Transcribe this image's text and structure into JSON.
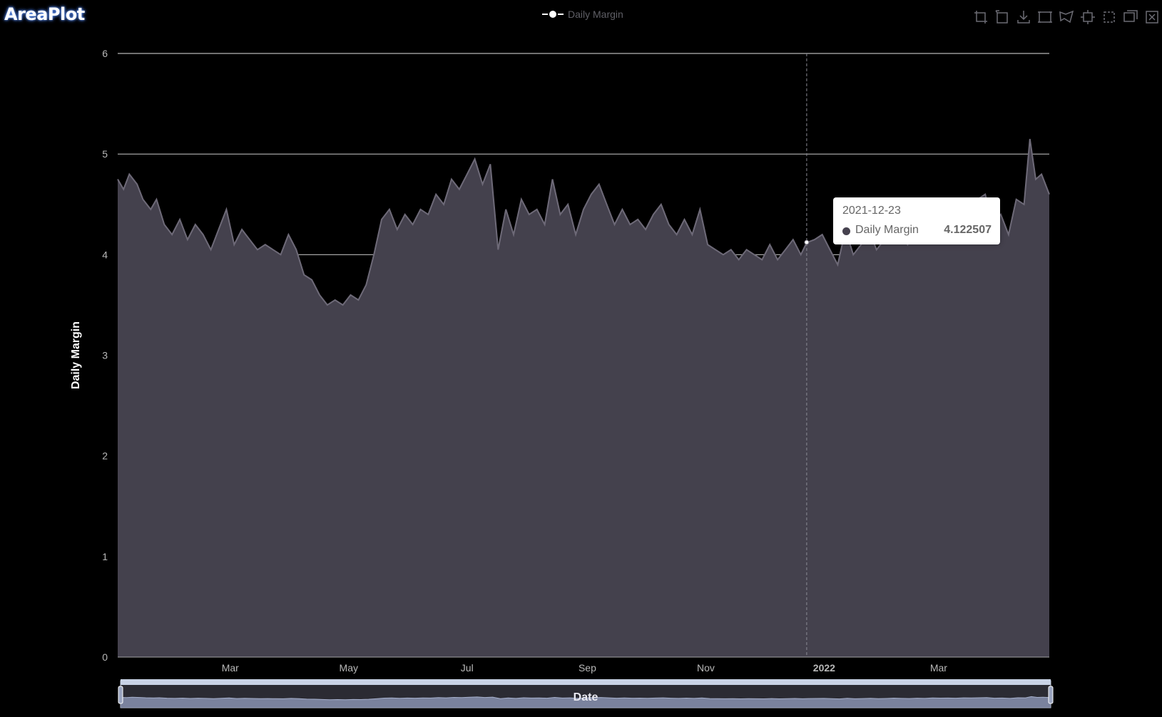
{
  "app": {
    "title": "AreaPlot"
  },
  "legend": {
    "label": "Daily Margin"
  },
  "toolbox": {
    "icons": [
      "zoom-icon",
      "zoom-reset-icon",
      "save-image-icon",
      "rect-select-icon",
      "polygon-select-icon",
      "keep-selection-icon",
      "clear-selection-icon",
      "data-view-icon",
      "restore-icon"
    ]
  },
  "tooltip": {
    "date": "2021-12-23",
    "series": "Daily Margin",
    "value": "4.122507"
  },
  "colors": {
    "background": "#000000",
    "area_fill": "#44414d",
    "line": "#6e6a78",
    "grid": "#d6d6d6",
    "axis_text": "#b8b8b8",
    "tooltip_bg": "#ffffff"
  },
  "chart_data": {
    "type": "area",
    "title": "",
    "xlabel": "Date",
    "ylabel": "Daily Margin",
    "ylim": [
      0,
      6
    ],
    "xlim": [
      "2021-01-02",
      "2022-04-27"
    ],
    "yticks": [
      "0",
      "1",
      "2",
      "3",
      "4",
      "5",
      "6"
    ],
    "xticks": [
      {
        "date": "2021-03-01",
        "label": "Mar",
        "bold": false
      },
      {
        "date": "2021-05-01",
        "label": "May",
        "bold": false
      },
      {
        "date": "2021-07-01",
        "label": "Jul",
        "bold": false
      },
      {
        "date": "2021-09-01",
        "label": "Sep",
        "bold": false
      },
      {
        "date": "2021-11-01",
        "label": "Nov",
        "bold": false
      },
      {
        "date": "2022-01-01",
        "label": "2022",
        "bold": true
      },
      {
        "date": "2022-03-01",
        "label": "Mar",
        "bold": false
      }
    ],
    "grid": true,
    "legend_position": "top-center",
    "highlight": {
      "x": "2021-12-23",
      "y": 4.122507
    },
    "series": [
      {
        "name": "Daily Margin",
        "x": [
          "2021-01-02",
          "2021-01-05",
          "2021-01-08",
          "2021-01-12",
          "2021-01-15",
          "2021-01-19",
          "2021-01-22",
          "2021-01-26",
          "2021-01-30",
          "2021-02-03",
          "2021-02-07",
          "2021-02-11",
          "2021-02-15",
          "2021-02-19",
          "2021-02-23",
          "2021-02-27",
          "2021-03-03",
          "2021-03-07",
          "2021-03-11",
          "2021-03-15",
          "2021-03-19",
          "2021-03-23",
          "2021-03-27",
          "2021-03-31",
          "2021-04-04",
          "2021-04-08",
          "2021-04-12",
          "2021-04-16",
          "2021-04-20",
          "2021-04-24",
          "2021-04-28",
          "2021-05-02",
          "2021-05-06",
          "2021-05-10",
          "2021-05-14",
          "2021-05-18",
          "2021-05-22",
          "2021-05-26",
          "2021-05-30",
          "2021-06-03",
          "2021-06-07",
          "2021-06-11",
          "2021-06-15",
          "2021-06-19",
          "2021-06-23",
          "2021-06-27",
          "2021-07-01",
          "2021-07-05",
          "2021-07-09",
          "2021-07-13",
          "2021-07-17",
          "2021-07-21",
          "2021-07-25",
          "2021-07-29",
          "2021-08-02",
          "2021-08-06",
          "2021-08-10",
          "2021-08-14",
          "2021-08-18",
          "2021-08-22",
          "2021-08-26",
          "2021-08-30",
          "2021-09-03",
          "2021-09-07",
          "2021-09-11",
          "2021-09-15",
          "2021-09-19",
          "2021-09-23",
          "2021-09-27",
          "2021-10-01",
          "2021-10-05",
          "2021-10-09",
          "2021-10-13",
          "2021-10-17",
          "2021-10-21",
          "2021-10-25",
          "2021-10-29",
          "2021-11-02",
          "2021-11-06",
          "2021-11-10",
          "2021-11-14",
          "2021-11-18",
          "2021-11-22",
          "2021-11-26",
          "2021-11-30",
          "2021-12-04",
          "2021-12-08",
          "2021-12-12",
          "2021-12-16",
          "2021-12-20",
          "2021-12-23",
          "2021-12-27",
          "2021-12-31",
          "2022-01-04",
          "2022-01-08",
          "2022-01-12",
          "2022-01-16",
          "2022-01-20",
          "2022-01-24",
          "2022-01-28",
          "2022-02-01",
          "2022-02-05",
          "2022-02-09",
          "2022-02-13",
          "2022-02-17",
          "2022-02-21",
          "2022-02-25",
          "2022-03-01",
          "2022-03-05",
          "2022-03-09",
          "2022-03-13",
          "2022-03-17",
          "2022-03-21",
          "2022-03-25",
          "2022-03-29",
          "2022-04-02",
          "2022-04-06",
          "2022-04-10",
          "2022-04-14",
          "2022-04-17",
          "2022-04-20",
          "2022-04-23",
          "2022-04-27"
        ],
        "values": [
          4.75,
          4.65,
          4.8,
          4.7,
          4.55,
          4.45,
          4.55,
          4.3,
          4.2,
          4.35,
          4.15,
          4.3,
          4.2,
          4.05,
          4.25,
          4.45,
          4.1,
          4.25,
          4.15,
          4.05,
          4.1,
          4.05,
          4.0,
          4.2,
          4.05,
          3.8,
          3.75,
          3.6,
          3.5,
          3.55,
          3.5,
          3.6,
          3.55,
          3.7,
          4.0,
          4.35,
          4.45,
          4.25,
          4.4,
          4.3,
          4.45,
          4.4,
          4.6,
          4.5,
          4.75,
          4.65,
          4.8,
          4.95,
          4.7,
          4.9,
          4.05,
          4.45,
          4.2,
          4.55,
          4.4,
          4.45,
          4.3,
          4.75,
          4.4,
          4.5,
          4.2,
          4.45,
          4.6,
          4.7,
          4.5,
          4.3,
          4.45,
          4.3,
          4.35,
          4.25,
          4.4,
          4.5,
          4.3,
          4.2,
          4.35,
          4.2,
          4.45,
          4.1,
          4.05,
          4.0,
          4.05,
          3.95,
          4.05,
          4.0,
          3.95,
          4.1,
          3.95,
          4.05,
          4.15,
          4.0,
          4.12,
          4.15,
          4.2,
          4.05,
          3.9,
          4.25,
          4.0,
          4.1,
          4.25,
          4.05,
          4.15,
          4.35,
          4.2,
          4.1,
          4.3,
          4.2,
          4.45,
          4.35,
          4.4,
          4.3,
          4.5,
          4.45,
          4.55,
          4.6,
          4.3,
          4.4,
          4.2,
          4.55,
          4.5,
          5.15,
          4.75,
          4.8,
          4.6
        ]
      }
    ]
  }
}
